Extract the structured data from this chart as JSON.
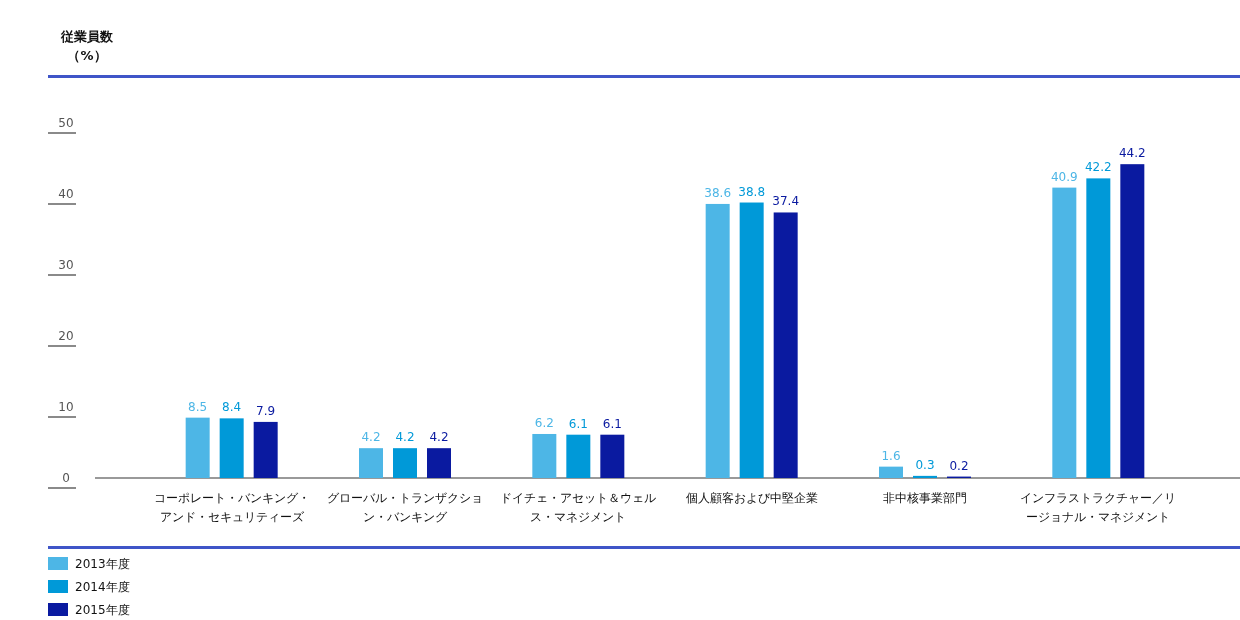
{
  "chart_data": {
    "type": "bar",
    "ylabel": "従業員数（%）",
    "categories": [
      "コーポレート・バンキング・アンド・セキュリティーズ",
      "グローバル・トランザクション・バンキング",
      "ドイチェ・アセット＆ウェルス・マネジメント",
      "個人顧客および中堅企業",
      "非中核事業部門",
      "インフラストラクチャー／リージョナル・マネジメント"
    ],
    "series": [
      {
        "name": "2013年度",
        "color": "#4db6e6",
        "values": [
          8.5,
          4.2,
          6.2,
          38.6,
          1.6,
          40.9
        ]
      },
      {
        "name": "2014年度",
        "color": "#0099d8",
        "values": [
          8.4,
          4.2,
          6.1,
          38.8,
          0.3,
          42.2
        ]
      },
      {
        "name": "2015年度",
        "color": "#0a1aa0",
        "values": [
          7.9,
          4.2,
          6.1,
          37.4,
          0.2,
          44.2
        ]
      }
    ],
    "ylim": [
      0,
      50
    ],
    "yticks": [
      0,
      10,
      20,
      30,
      40,
      50
    ],
    "data_labels": true,
    "legend": "bottom left",
    "grid": false
  }
}
